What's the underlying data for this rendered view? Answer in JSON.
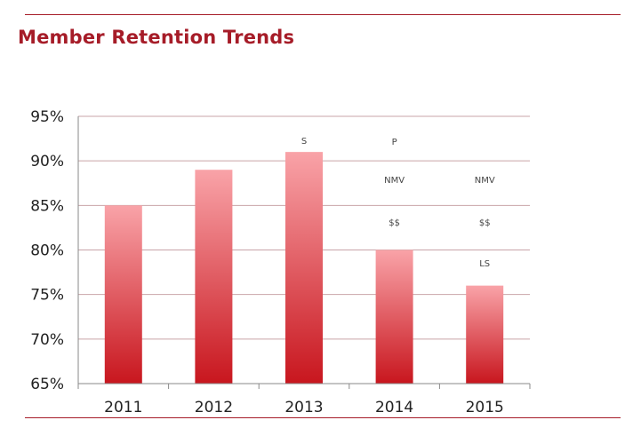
{
  "title": "Member Retention Trends",
  "chart_data": {
    "type": "bar",
    "categories": [
      "2011",
      "2012",
      "2013",
      "2014",
      "2015"
    ],
    "values": [
      85,
      89,
      91,
      80,
      76
    ],
    "ylim": [
      65,
      95
    ],
    "yticks": [
      "65%",
      "70%",
      "75%",
      "80%",
      "85%",
      "90%",
      "95%"
    ],
    "ytick_values": [
      65,
      70,
      75,
      80,
      85,
      90,
      95
    ],
    "grid": true,
    "annotations": [
      {
        "category": "2013",
        "text": "S"
      },
      {
        "category": "2014",
        "text": "P"
      },
      {
        "category": "2014",
        "text": "NMV"
      },
      {
        "category": "2014",
        "text": "$$"
      },
      {
        "category": "2015",
        "text": "NMV"
      },
      {
        "category": "2015",
        "text": "$$"
      },
      {
        "category": "2015",
        "text": "LS"
      }
    ],
    "colors": {
      "bar_top": "#f9a3a8",
      "bar_bottom": "#c8161e",
      "grid": "#c9a4a8",
      "rule": "#a61c28"
    }
  }
}
